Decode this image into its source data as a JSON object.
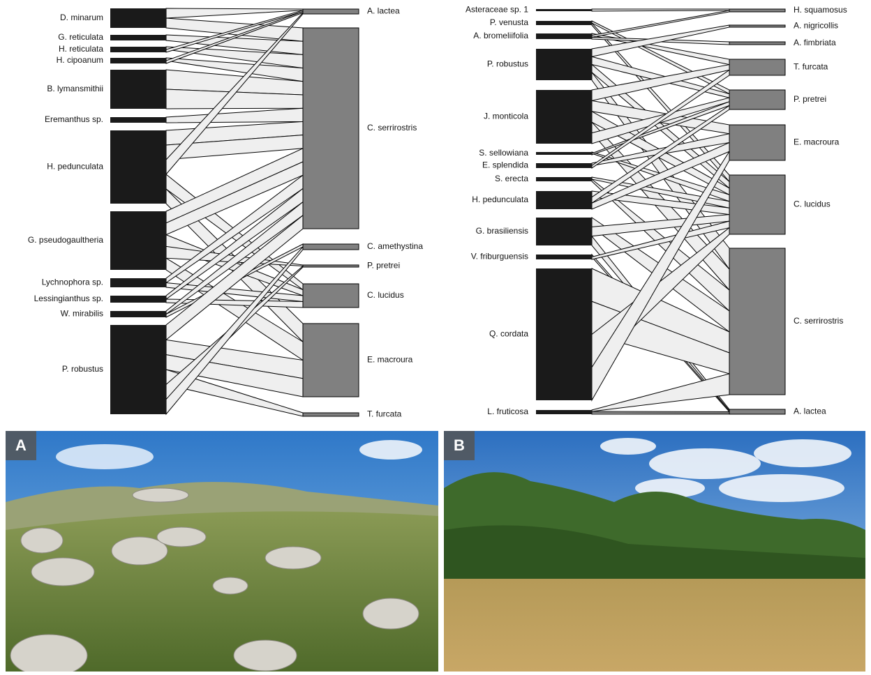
{
  "networks": [
    {
      "left_nodes": [
        "D. minarum",
        "G. reticulata",
        "H. reticulata",
        "H. cipoanum",
        "B. lymansmithii",
        "Eremanthus sp.",
        "H. pedunculata",
        "G. pseudogaultheria",
        "Lychnophora sp.",
        "Lessingianthus sp.",
        "W. mirabilis",
        "P. robustus"
      ],
      "right_nodes": [
        "A. lactea",
        "C. serrirostris",
        "C. amethystina",
        "P. pretrei",
        "C. lucidus",
        "E. macroura",
        "T. furcata"
      ]
    },
    {
      "left_nodes": [
        "Asteraceae sp. 1",
        "P. venusta",
        "A. bromeliifolia",
        "P. robustus",
        "J. monticola",
        "S. sellowiana",
        "E. splendida",
        "S. erecta",
        "H. pedunculata",
        "G. brasiliensis",
        "V. friburguensis",
        "Q. cordata",
        "L. fruticosa"
      ],
      "right_nodes": [
        "H. squamosus",
        "A. nigricollis",
        "A. fimbriata",
        "T. furcata",
        "P. pretrei",
        "E. macroura",
        "C. lucidus",
        "C. serrirostris",
        "A. lactea"
      ]
    }
  ],
  "photos": [
    {
      "label": "A"
    },
    {
      "label": "B"
    }
  ]
}
